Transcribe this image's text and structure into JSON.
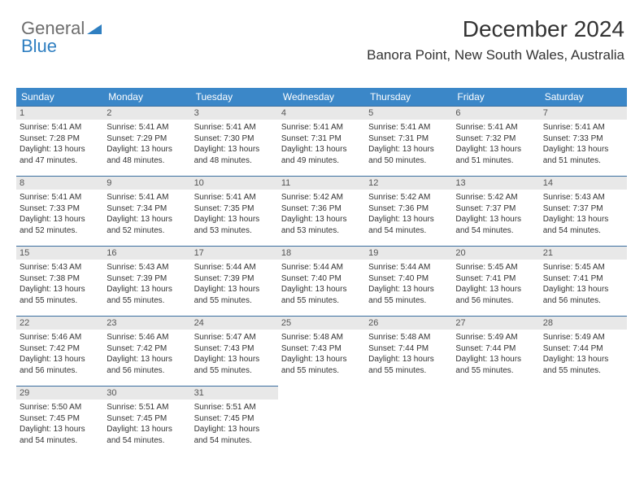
{
  "logo": {
    "text_general": "General",
    "text_blue": "Blue"
  },
  "title": {
    "month": "December 2024",
    "location": "Banora Point, New South Wales, Australia"
  },
  "style": {
    "header_bg": "#3b87c8",
    "header_fg": "#ffffff",
    "daynum_bg": "#e8e8e8",
    "border_color": "#3b6fa0",
    "body_fontsize": 10,
    "header_fontsize": 12,
    "title_fontsize": 28,
    "location_fontsize": 17
  },
  "headers": [
    "Sunday",
    "Monday",
    "Tuesday",
    "Wednesday",
    "Thursday",
    "Friday",
    "Saturday"
  ],
  "days": [
    {
      "n": "1",
      "sunrise": "5:41 AM",
      "sunset": "7:28 PM",
      "dl": "13 hours and 47 minutes."
    },
    {
      "n": "2",
      "sunrise": "5:41 AM",
      "sunset": "7:29 PM",
      "dl": "13 hours and 48 minutes."
    },
    {
      "n": "3",
      "sunrise": "5:41 AM",
      "sunset": "7:30 PM",
      "dl": "13 hours and 48 minutes."
    },
    {
      "n": "4",
      "sunrise": "5:41 AM",
      "sunset": "7:31 PM",
      "dl": "13 hours and 49 minutes."
    },
    {
      "n": "5",
      "sunrise": "5:41 AM",
      "sunset": "7:31 PM",
      "dl": "13 hours and 50 minutes."
    },
    {
      "n": "6",
      "sunrise": "5:41 AM",
      "sunset": "7:32 PM",
      "dl": "13 hours and 51 minutes."
    },
    {
      "n": "7",
      "sunrise": "5:41 AM",
      "sunset": "7:33 PM",
      "dl": "13 hours and 51 minutes."
    },
    {
      "n": "8",
      "sunrise": "5:41 AM",
      "sunset": "7:33 PM",
      "dl": "13 hours and 52 minutes."
    },
    {
      "n": "9",
      "sunrise": "5:41 AM",
      "sunset": "7:34 PM",
      "dl": "13 hours and 52 minutes."
    },
    {
      "n": "10",
      "sunrise": "5:41 AM",
      "sunset": "7:35 PM",
      "dl": "13 hours and 53 minutes."
    },
    {
      "n": "11",
      "sunrise": "5:42 AM",
      "sunset": "7:36 PM",
      "dl": "13 hours and 53 minutes."
    },
    {
      "n": "12",
      "sunrise": "5:42 AM",
      "sunset": "7:36 PM",
      "dl": "13 hours and 54 minutes."
    },
    {
      "n": "13",
      "sunrise": "5:42 AM",
      "sunset": "7:37 PM",
      "dl": "13 hours and 54 minutes."
    },
    {
      "n": "14",
      "sunrise": "5:43 AM",
      "sunset": "7:37 PM",
      "dl": "13 hours and 54 minutes."
    },
    {
      "n": "15",
      "sunrise": "5:43 AM",
      "sunset": "7:38 PM",
      "dl": "13 hours and 55 minutes."
    },
    {
      "n": "16",
      "sunrise": "5:43 AM",
      "sunset": "7:39 PM",
      "dl": "13 hours and 55 minutes."
    },
    {
      "n": "17",
      "sunrise": "5:44 AM",
      "sunset": "7:39 PM",
      "dl": "13 hours and 55 minutes."
    },
    {
      "n": "18",
      "sunrise": "5:44 AM",
      "sunset": "7:40 PM",
      "dl": "13 hours and 55 minutes."
    },
    {
      "n": "19",
      "sunrise": "5:44 AM",
      "sunset": "7:40 PM",
      "dl": "13 hours and 55 minutes."
    },
    {
      "n": "20",
      "sunrise": "5:45 AM",
      "sunset": "7:41 PM",
      "dl": "13 hours and 56 minutes."
    },
    {
      "n": "21",
      "sunrise": "5:45 AM",
      "sunset": "7:41 PM",
      "dl": "13 hours and 56 minutes."
    },
    {
      "n": "22",
      "sunrise": "5:46 AM",
      "sunset": "7:42 PM",
      "dl": "13 hours and 56 minutes."
    },
    {
      "n": "23",
      "sunrise": "5:46 AM",
      "sunset": "7:42 PM",
      "dl": "13 hours and 56 minutes."
    },
    {
      "n": "24",
      "sunrise": "5:47 AM",
      "sunset": "7:43 PM",
      "dl": "13 hours and 55 minutes."
    },
    {
      "n": "25",
      "sunrise": "5:48 AM",
      "sunset": "7:43 PM",
      "dl": "13 hours and 55 minutes."
    },
    {
      "n": "26",
      "sunrise": "5:48 AM",
      "sunset": "7:44 PM",
      "dl": "13 hours and 55 minutes."
    },
    {
      "n": "27",
      "sunrise": "5:49 AM",
      "sunset": "7:44 PM",
      "dl": "13 hours and 55 minutes."
    },
    {
      "n": "28",
      "sunrise": "5:49 AM",
      "sunset": "7:44 PM",
      "dl": "13 hours and 55 minutes."
    },
    {
      "n": "29",
      "sunrise": "5:50 AM",
      "sunset": "7:45 PM",
      "dl": "13 hours and 54 minutes."
    },
    {
      "n": "30",
      "sunrise": "5:51 AM",
      "sunset": "7:45 PM",
      "dl": "13 hours and 54 minutes."
    },
    {
      "n": "31",
      "sunrise": "5:51 AM",
      "sunset": "7:45 PM",
      "dl": "13 hours and 54 minutes."
    }
  ],
  "labels": {
    "sunrise": "Sunrise:",
    "sunset": "Sunset:",
    "daylight": "Daylight:"
  }
}
